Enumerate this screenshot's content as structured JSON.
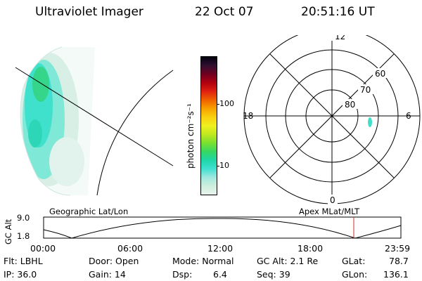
{
  "header": {
    "title": "Ultraviolet Imager",
    "date": "22 Oct 07",
    "time": "20:51:16 UT"
  },
  "colorbar": {
    "unit_label": "photon cm⁻²s⁻¹",
    "tick_labels": [
      "100",
      "10"
    ],
    "colors": [
      "#e8f4ee",
      "#cfeedd",
      "#9fe8e0",
      "#3fe0d0",
      "#1fd6a8",
      "#38d860",
      "#7ae030",
      "#c0e820",
      "#f0f020",
      "#f8d010",
      "#f8a000",
      "#f06000",
      "#e02010",
      "#b00010",
      "#700020",
      "#301030",
      "#000010"
    ]
  },
  "polar": {
    "mlt_labels": {
      "top": "12",
      "right": "6",
      "bottom": "0",
      "left": "18"
    },
    "lat_labels": [
      "60",
      "70",
      "80"
    ],
    "aurora_color": "#40e0c8"
  },
  "timeline": {
    "left_label": "Geographic Lat/Lon",
    "right_label": "Apex MLat/MLT",
    "axis_label": "GC Alt",
    "y_max": "9.0",
    "y_min": "1.8",
    "x_ticks": [
      "00:00",
      "06:00",
      "12:00",
      "18:00",
      "23:59"
    ],
    "marker_color": "#d03020"
  },
  "status": {
    "flt": "Flt: LBHL",
    "ip": "IP: 36.0",
    "door": "Door: Open",
    "gain": "Gain: 14",
    "mode": "Mode: Normal",
    "dsp": "Dsp:",
    "dsp_value": "6.4",
    "gc_alt": "GC Alt: 2.1 Re",
    "seq": "Seq: 39",
    "glat_label": "GLat:",
    "glat_value": "78.7",
    "glon_label": "GLon:",
    "glon_value": "136.1"
  }
}
